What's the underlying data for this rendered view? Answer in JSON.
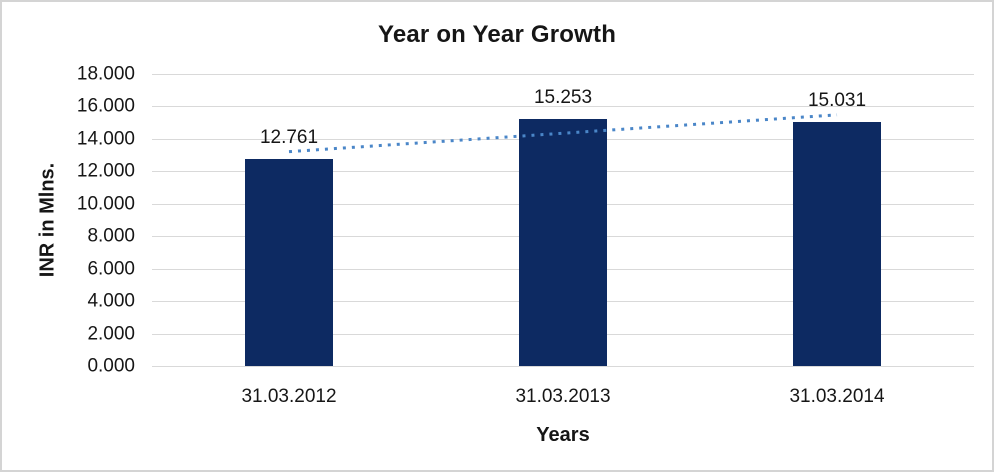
{
  "chart_data": {
    "type": "bar",
    "title": "Year on Year Growth",
    "xlabel": "Years",
    "ylabel": "INR in Mlns.",
    "categories": [
      "31.03.2012",
      "31.03.2013",
      "31.03.2014"
    ],
    "values": [
      12761,
      15253,
      15031
    ],
    "data_labels": [
      "12.761",
      "15.253",
      "15.031"
    ],
    "ylim": [
      0,
      18000
    ],
    "y_ticks": [
      {
        "value": 0,
        "label": "0.000"
      },
      {
        "value": 2000,
        "label": "2.000"
      },
      {
        "value": 4000,
        "label": "4.000"
      },
      {
        "value": 6000,
        "label": "6.000"
      },
      {
        "value": 8000,
        "label": "8.000"
      },
      {
        "value": 10000,
        "label": "10.000"
      },
      {
        "value": 12000,
        "label": "12.000"
      },
      {
        "value": 14000,
        "label": "14.000"
      },
      {
        "value": 16000,
        "label": "16.000"
      },
      {
        "value": 18000,
        "label": "18.000"
      }
    ],
    "grid": true,
    "legend": "none",
    "bar_color": "#0d2a62",
    "gridline_color": "#d9d9d9",
    "trendline": {
      "type": "linear",
      "style": "dotted",
      "color": "#4a86c8"
    }
  }
}
